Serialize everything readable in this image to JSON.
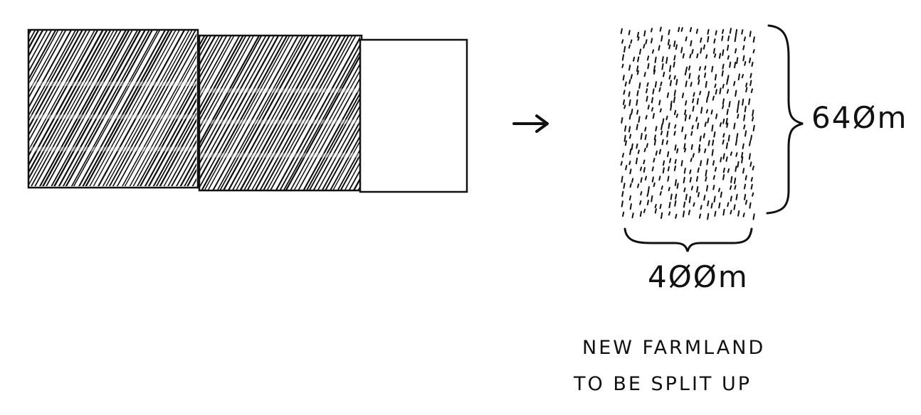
{
  "diagram": {
    "description_labels": {
      "height_label": "64Øm",
      "width_label": "4ØØm",
      "caption_line1": "NEW FARMLAND",
      "caption_line2": "TO BE SPLIT UP"
    },
    "strip": {
      "segments": [
        {
          "fill": "hatched"
        },
        {
          "fill": "hatched"
        },
        {
          "fill": "empty"
        }
      ]
    },
    "field": {
      "height_m": 640,
      "width_m": 400,
      "fill": "dotted"
    },
    "colors": {
      "ink": "#111111",
      "paper": "#ffffff"
    }
  }
}
